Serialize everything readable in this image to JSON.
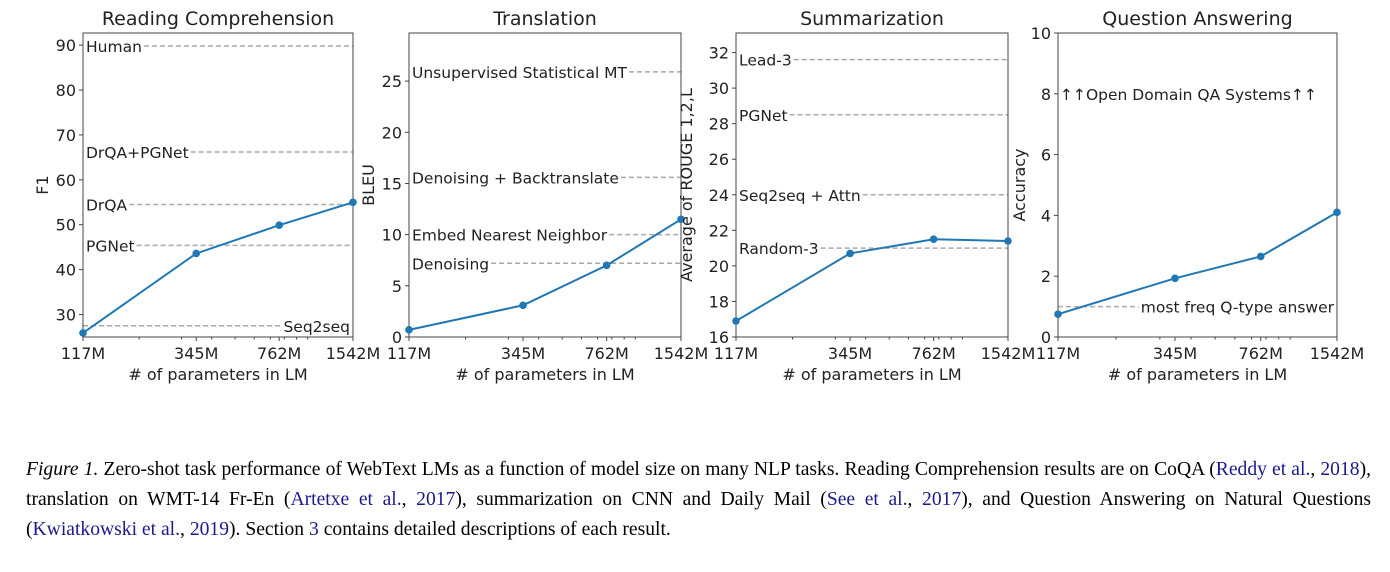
{
  "chart_data": [
    {
      "type": "line",
      "title": "Reading Comprehension",
      "xlabel": "# of parameters in LM",
      "ylabel": "F1",
      "xscale": "log",
      "x": [
        117,
        345,
        762,
        1542
      ],
      "x_tick_labels": [
        "117M",
        "345M",
        "762M",
        "1542M"
      ],
      "values": [
        25.9,
        43.6,
        49.9,
        55.0
      ],
      "ylim": [
        25,
        92.7
      ],
      "yticks": [
        30,
        40,
        50,
        60,
        70,
        80,
        90
      ],
      "baselines": [
        {
          "label": "Human",
          "value": 89.8,
          "align": "left"
        },
        {
          "label": "DrQA+PGNet",
          "value": 66.2,
          "align": "left"
        },
        {
          "label": "DrQA",
          "value": 54.5,
          "align": "left"
        },
        {
          "label": "PGNet",
          "value": 45.4,
          "align": "left"
        },
        {
          "label": "Seq2seq",
          "value": 27.5,
          "align": "right"
        }
      ]
    },
    {
      "type": "line",
      "title": "Translation",
      "xlabel": "# of parameters in LM",
      "ylabel": "BLEU",
      "xscale": "log",
      "x": [
        117,
        345,
        762,
        1542
      ],
      "x_tick_labels": [
        "117M",
        "345M",
        "762M",
        "1542M"
      ],
      "values": [
        0.7,
        3.1,
        7.0,
        11.5
      ],
      "ylim": [
        0,
        29.7
      ],
      "yticks": [
        0,
        5,
        10,
        15,
        20,
        25
      ],
      "baselines": [
        {
          "label": "Unsupervised Statistical MT",
          "value": 25.9,
          "align": "left"
        },
        {
          "label": "Denoising + Backtranslate",
          "value": 15.6,
          "align": "left"
        },
        {
          "label": "Embed Nearest Neighbor",
          "value": 10.0,
          "align": "left"
        },
        {
          "label": "Denoising",
          "value": 7.2,
          "align": "left"
        }
      ]
    },
    {
      "type": "line",
      "title": "Summarization",
      "xlabel": "# of parameters in LM",
      "ylabel": "Average of ROUGE 1,2,L",
      "xscale": "log",
      "x": [
        117,
        345,
        762,
        1542
      ],
      "x_tick_labels": [
        "117M",
        "345M",
        "762M",
        "1542M"
      ],
      "values": [
        16.9,
        20.7,
        21.5,
        21.4
      ],
      "ylim": [
        16,
        33.1
      ],
      "yticks": [
        16,
        18,
        20,
        22,
        24,
        26,
        28,
        30,
        32
      ],
      "baselines": [
        {
          "label": "Lead-3",
          "value": 31.6,
          "align": "left"
        },
        {
          "label": "PGNet",
          "value": 28.5,
          "align": "left"
        },
        {
          "label": "Seq2seq + Attn",
          "value": 24.0,
          "align": "left"
        },
        {
          "label": "Random-3",
          "value": 21.0,
          "align": "left"
        }
      ]
    },
    {
      "type": "line",
      "title": "Question Answering",
      "xlabel": "# of parameters in LM",
      "ylabel": "Accuracy",
      "xscale": "log",
      "x": [
        117,
        345,
        762,
        1542
      ],
      "x_tick_labels": [
        "117M",
        "345M",
        "762M",
        "1542M"
      ],
      "values": [
        0.75,
        1.93,
        2.65,
        4.1
      ],
      "ylim": [
        0,
        10
      ],
      "yticks": [
        0,
        2,
        4,
        6,
        8,
        10
      ],
      "baselines": [
        {
          "label": "most freq Q-type answer",
          "value": 1.0,
          "align": "right"
        }
      ],
      "annotations": [
        {
          "label": "↑↑Open Domain QA Systems↑↑",
          "value": 8
        }
      ]
    }
  ],
  "colors": {
    "line": "#1f77b4",
    "baseline": "#aaaaaa",
    "link": "#1a1a8c"
  },
  "caption": {
    "label": "Figure 1.",
    "parts": [
      {
        "t": " Zero-shot task performance of WebText LMs as a function of model size on many NLP tasks. Reading Comprehension results are on CoQA ("
      },
      {
        "t": "Reddy et al.",
        "link": true
      },
      {
        "t": ", "
      },
      {
        "t": "2018",
        "link": true
      },
      {
        "t": "), translation on WMT-14 Fr-En ("
      },
      {
        "t": "Artetxe et al.",
        "link": true
      },
      {
        "t": ", "
      },
      {
        "t": "2017",
        "link": true
      },
      {
        "t": "), summarization on CNN and Daily Mail ("
      },
      {
        "t": "See et al.",
        "link": true
      },
      {
        "t": ", "
      },
      {
        "t": "2017",
        "link": true
      },
      {
        "t": "), and Question Answering on Natural Questions ("
      },
      {
        "t": "Kwiatkowski et al.",
        "link": true
      },
      {
        "t": ", "
      },
      {
        "t": "2019",
        "link": true
      },
      {
        "t": "). Section "
      },
      {
        "t": "3",
        "link": true
      },
      {
        "t": " contains detailed descriptions of each result."
      }
    ]
  }
}
